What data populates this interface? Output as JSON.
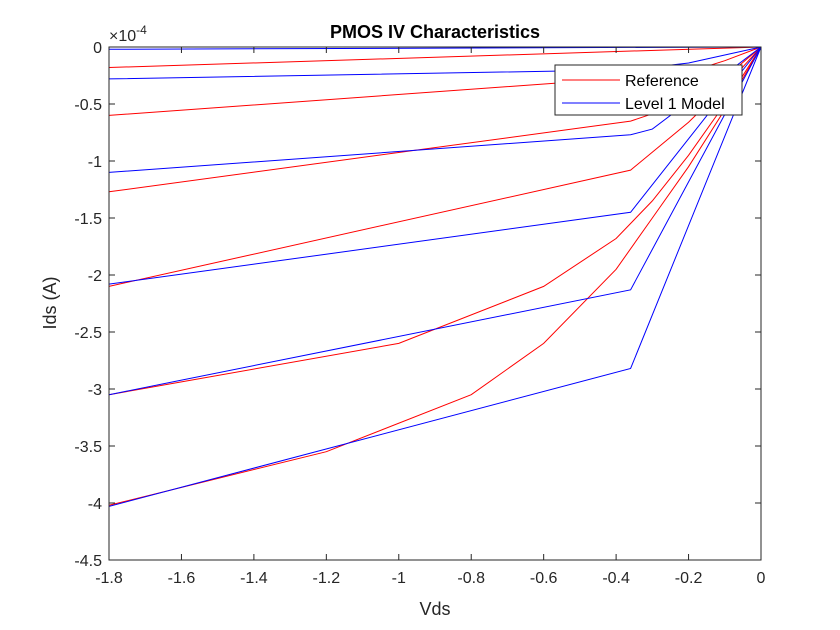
{
  "chart_data": {
    "type": "line",
    "title": "PMOS IV Characteristics",
    "xlabel": "Vds",
    "ylabel": "Ids (A)",
    "y_multiplier_label": "×10",
    "y_multiplier_exponent": "-4",
    "xlim": [
      -1.8,
      0
    ],
    "ylim": [
      -4.5,
      0
    ],
    "x_ticks": [
      -1.8,
      -1.6,
      -1.4,
      -1.2,
      -1,
      -0.8,
      -0.6,
      -0.4,
      -0.2,
      0
    ],
    "x_tick_labels": [
      "-1.8",
      "-1.6",
      "-1.4",
      "-1.2",
      "-1",
      "-0.8",
      "-0.6",
      "-0.4",
      "-0.2",
      "0"
    ],
    "y_ticks": [
      0,
      -0.5,
      -1,
      -1.5,
      -2,
      -2.5,
      -3,
      -3.5,
      -4,
      -4.5
    ],
    "y_tick_labels": [
      "0",
      "-0.5",
      "-1",
      "-1.5",
      "-2",
      "-2.5",
      "-3",
      "-3.5",
      "-4",
      "-4.5"
    ],
    "y_unit_scale": 0.0001,
    "grid": false,
    "legend_position": "top-right",
    "colors": {
      "reference": "#ff0000",
      "model": "#0000ff"
    },
    "series": [
      {
        "name": "Reference",
        "color": "#ff0000",
        "x": [
          -1.8,
          0
        ],
        "y": [
          -0.18,
          0
        ]
      },
      {
        "x": [
          -1.8,
          -0.36,
          -0.2,
          -0.1,
          0
        ],
        "y": [
          -0.6,
          -0.27,
          -0.22,
          -0.12,
          0
        ]
      },
      {
        "x": [
          -1.8,
          -0.36,
          -0.2,
          -0.1,
          0
        ],
        "y": [
          -1.27,
          -0.65,
          -0.48,
          -0.27,
          0
        ]
      },
      {
        "x": [
          -1.8,
          -0.36,
          -0.2,
          -0.1,
          0
        ],
        "y": [
          -2.1,
          -1.08,
          -0.66,
          -0.35,
          0
        ]
      },
      {
        "x": [
          -1.8,
          -1.0,
          -0.6,
          -0.4,
          -0.3,
          -0.2,
          -0.1,
          0
        ],
        "y": [
          -3.05,
          -2.6,
          -2.1,
          -1.68,
          -1.35,
          -0.95,
          -0.5,
          0
        ]
      },
      {
        "x": [
          -1.8,
          -1.2,
          -0.8,
          -0.6,
          -0.4,
          -0.3,
          -0.2,
          -0.1,
          0
        ],
        "y": [
          -4.02,
          -3.55,
          -3.05,
          -2.6,
          -1.95,
          -1.5,
          -1.05,
          -0.55,
          0
        ]
      },
      {
        "name": "Level 1 Model",
        "color": "#0000ff",
        "x": [
          -1.8,
          0
        ],
        "y": [
          -0.02,
          0
        ]
      },
      {
        "x": [
          -1.8,
          -0.36,
          -0.2,
          0
        ],
        "y": [
          -0.28,
          -0.2,
          -0.14,
          0
        ]
      },
      {
        "x": [
          -1.8,
          -0.36,
          -0.3,
          0
        ],
        "y": [
          -1.1,
          -0.77,
          -0.72,
          0
        ]
      },
      {
        "x": [
          -1.8,
          -0.36,
          0
        ],
        "y": [
          -2.08,
          -1.45,
          0
        ]
      },
      {
        "x": [
          -1.8,
          -0.36,
          0
        ],
        "y": [
          -3.05,
          -2.13,
          0
        ]
      },
      {
        "x": [
          -1.8,
          -0.36,
          0
        ],
        "y": [
          -4.03,
          -2.82,
          0
        ]
      }
    ]
  }
}
